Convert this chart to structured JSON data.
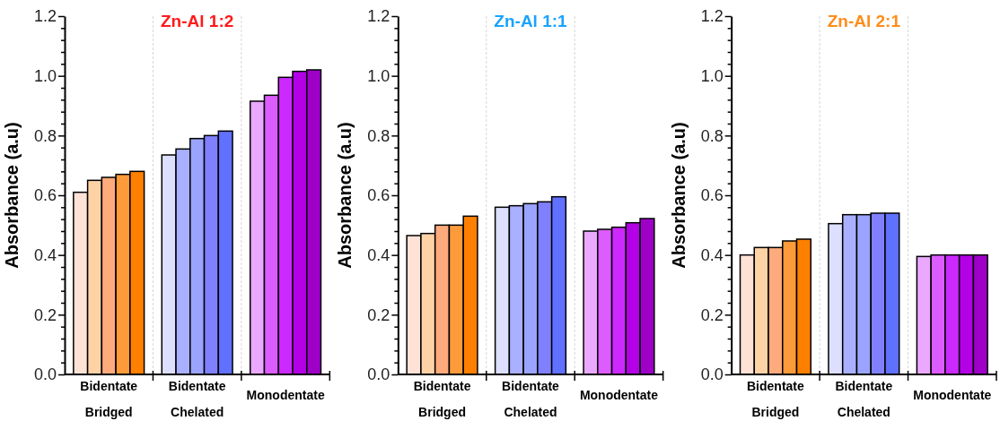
{
  "chart_data": [
    {
      "type": "bar",
      "title": "Zn-Al 1:2",
      "ylabel": "Absorbance (a.u)",
      "categories": [
        "Bidentate Bridged",
        "Bidentate Chelated",
        "Monodentate"
      ],
      "ylim": [
        0,
        1.2
      ],
      "yticks": [
        {
          "value": 0,
          "label": "0.0"
        },
        {
          "value": 0.04,
          "label": null
        },
        {
          "value": 0.08,
          "label": null
        },
        {
          "value": 0.12,
          "label": null
        },
        {
          "value": 0.16,
          "label": null
        },
        {
          "value": 0.2,
          "label": "0.2"
        },
        {
          "value": 0.24,
          "label": null
        },
        {
          "value": 0.28,
          "label": null
        },
        {
          "value": 0.32,
          "label": null
        },
        {
          "value": 0.36,
          "label": null
        },
        {
          "value": 0.4,
          "label": "0.4"
        },
        {
          "value": 0.44,
          "label": null
        },
        {
          "value": 0.48,
          "label": null
        },
        {
          "value": 0.52,
          "label": null
        },
        {
          "value": 0.56,
          "label": null
        },
        {
          "value": 0.6,
          "label": "0.6"
        },
        {
          "value": 0.64,
          "label": null
        },
        {
          "value": 0.68,
          "label": null
        },
        {
          "value": 0.72,
          "label": null
        },
        {
          "value": 0.76,
          "label": null
        },
        {
          "value": 0.8,
          "label": "0.8"
        },
        {
          "value": 0.84,
          "label": null
        },
        {
          "value": 0.88,
          "label": null
        },
        {
          "value": 0.92,
          "label": null
        },
        {
          "value": 0.96,
          "label": null
        },
        {
          "value": 1.0,
          "label": "1.0"
        },
        {
          "value": 1.04,
          "label": null
        },
        {
          "value": 1.08,
          "label": null
        },
        {
          "value": 1.12,
          "label": null
        },
        {
          "value": 1.16,
          "label": null
        },
        {
          "value": 1.2,
          "label": "1.2"
        }
      ],
      "grid": false,
      "series": [
        {
          "colors": [
            "#fee2d6",
            "#dcdffe",
            "#eba8ff"
          ],
          "values": [
            0.61,
            0.735,
            0.915
          ]
        },
        {
          "colors": [
            "#fdd3a6",
            "#a8b0ff",
            "#dc5cff"
          ],
          "values": [
            0.65,
            0.755,
            0.935
          ]
        },
        {
          "colors": [
            "#fdaa7c",
            "#9aa4ff",
            "#cc29ff"
          ],
          "values": [
            0.66,
            0.79,
            0.995
          ]
        },
        {
          "colors": [
            "#fd9a3a",
            "#8080ff",
            "#b300e6"
          ],
          "values": [
            0.67,
            0.8,
            1.015
          ]
        },
        {
          "colors": [
            "#ff8000",
            "#6070ff",
            "#9e00c8"
          ],
          "values": [
            0.68,
            0.815,
            1.02
          ]
        }
      ]
    },
    {
      "type": "bar",
      "title": "Zn-Al 1:1",
      "ylabel": "Absorbance (a.u)",
      "categories": [
        "Bidentate Bridged",
        "Bidentate Chelated",
        "Monodentate"
      ],
      "ylim": [
        0,
        1.2
      ],
      "yticks": [
        {
          "value": 0,
          "label": "0.0"
        },
        {
          "value": 0.04,
          "label": null
        },
        {
          "value": 0.08,
          "label": null
        },
        {
          "value": 0.12,
          "label": null
        },
        {
          "value": 0.16,
          "label": null
        },
        {
          "value": 0.2,
          "label": "0.2"
        },
        {
          "value": 0.24,
          "label": null
        },
        {
          "value": 0.28,
          "label": null
        },
        {
          "value": 0.32,
          "label": null
        },
        {
          "value": 0.36,
          "label": null
        },
        {
          "value": 0.4,
          "label": "0.4"
        },
        {
          "value": 0.44,
          "label": null
        },
        {
          "value": 0.48,
          "label": null
        },
        {
          "value": 0.52,
          "label": null
        },
        {
          "value": 0.56,
          "label": null
        },
        {
          "value": 0.6,
          "label": "0.6"
        },
        {
          "value": 0.64,
          "label": null
        },
        {
          "value": 0.68,
          "label": null
        },
        {
          "value": 0.72,
          "label": null
        },
        {
          "value": 0.76,
          "label": null
        },
        {
          "value": 0.8,
          "label": "0.8"
        },
        {
          "value": 0.84,
          "label": null
        },
        {
          "value": 0.88,
          "label": null
        },
        {
          "value": 0.92,
          "label": null
        },
        {
          "value": 0.96,
          "label": null
        },
        {
          "value": 1.0,
          "label": "1.0"
        },
        {
          "value": 1.04,
          "label": null
        },
        {
          "value": 1.08,
          "label": null
        },
        {
          "value": 1.12,
          "label": null
        },
        {
          "value": 1.16,
          "label": null
        },
        {
          "value": 1.2,
          "label": "1.2"
        }
      ],
      "grid": false,
      "series": [
        {
          "colors": [
            "#fee2d6",
            "#dcdffe",
            "#eba8ff"
          ],
          "values": [
            0.465,
            0.56,
            0.48
          ]
        },
        {
          "colors": [
            "#fdd3a6",
            "#a8b0ff",
            "#dc5cff"
          ],
          "values": [
            0.472,
            0.565,
            0.486
          ]
        },
        {
          "colors": [
            "#fdaa7c",
            "#9aa4ff",
            "#cc29ff"
          ],
          "values": [
            0.5,
            0.572,
            0.493
          ]
        },
        {
          "colors": [
            "#fd9a3a",
            "#8080ff",
            "#b300e6"
          ],
          "values": [
            0.5,
            0.578,
            0.508
          ]
        },
        {
          "colors": [
            "#ff8000",
            "#6070ff",
            "#9e00c8"
          ],
          "values": [
            0.53,
            0.595,
            0.522
          ]
        }
      ]
    },
    {
      "type": "bar",
      "title": "Zn-Al 2:1",
      "ylabel": "Absorbance (a.u)",
      "categories": [
        "Bidentate Bridged",
        "Bidentate Chelated",
        "Monodentate"
      ],
      "ylim": [
        0,
        1.2
      ],
      "yticks": [
        {
          "value": 0,
          "label": "0.0"
        },
        {
          "value": 0.04,
          "label": null
        },
        {
          "value": 0.08,
          "label": null
        },
        {
          "value": 0.12,
          "label": null
        },
        {
          "value": 0.16,
          "label": null
        },
        {
          "value": 0.2,
          "label": "0.2"
        },
        {
          "value": 0.24,
          "label": null
        },
        {
          "value": 0.28,
          "label": null
        },
        {
          "value": 0.32,
          "label": null
        },
        {
          "value": 0.36,
          "label": null
        },
        {
          "value": 0.4,
          "label": "0.4"
        },
        {
          "value": 0.44,
          "label": null
        },
        {
          "value": 0.48,
          "label": null
        },
        {
          "value": 0.52,
          "label": null
        },
        {
          "value": 0.56,
          "label": null
        },
        {
          "value": 0.6,
          "label": "0.6"
        },
        {
          "value": 0.64,
          "label": null
        },
        {
          "value": 0.68,
          "label": null
        },
        {
          "value": 0.72,
          "label": null
        },
        {
          "value": 0.76,
          "label": null
        },
        {
          "value": 0.8,
          "label": "0.8"
        },
        {
          "value": 0.84,
          "label": null
        },
        {
          "value": 0.88,
          "label": null
        },
        {
          "value": 0.92,
          "label": null
        },
        {
          "value": 0.96,
          "label": null
        },
        {
          "value": 1.0,
          "label": "1.0"
        },
        {
          "value": 1.04,
          "label": null
        },
        {
          "value": 1.08,
          "label": null
        },
        {
          "value": 1.12,
          "label": null
        },
        {
          "value": 1.16,
          "label": null
        },
        {
          "value": 1.2,
          "label": "1.2"
        }
      ],
      "grid": false,
      "series": [
        {
          "colors": [
            "#fee2d6",
            "#dcdffe",
            "#eba8ff"
          ],
          "values": [
            0.4,
            0.505,
            0.395
          ]
        },
        {
          "colors": [
            "#fdd3a6",
            "#a8b0ff",
            "#dc5cff"
          ],
          "values": [
            0.425,
            0.535,
            0.4
          ]
        },
        {
          "colors": [
            "#fdaa7c",
            "#9aa4ff",
            "#cc29ff"
          ],
          "values": [
            0.425,
            0.535,
            0.4
          ]
        },
        {
          "colors": [
            "#fd9a3a",
            "#8080ff",
            "#b300e6"
          ],
          "values": [
            0.447,
            0.54,
            0.4
          ]
        },
        {
          "colors": [
            "#ff8000",
            "#6070ff",
            "#9e00c8"
          ],
          "values": [
            0.453,
            0.54,
            0.4
          ]
        }
      ]
    }
  ]
}
